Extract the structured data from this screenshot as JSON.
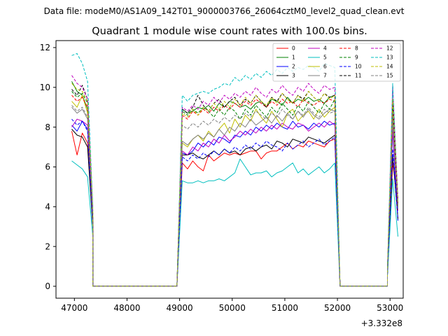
{
  "chart_data": {
    "type": "line",
    "suptitle": "Data file: modeM0/AS1A09_142T01_9000003766_26064cztM0_level2_quad_clean.evt",
    "title": "Quadrant 1 module wise count rates with 100.0s bins.",
    "xlabel": "",
    "ylabel": "",
    "x_offset_label": "+3.332e8",
    "xlim": [
      46650,
      53250
    ],
    "ylim": [
      -0.6,
      12.35
    ],
    "x_ticks": [
      47000,
      48000,
      49000,
      50000,
      51000,
      52000,
      53000
    ],
    "x_tick_labels": [
      "47000",
      "48000",
      "49000",
      "50000",
      "51000",
      "52000",
      "53000"
    ],
    "y_ticks": [
      0,
      2,
      4,
      6,
      8,
      10,
      12
    ],
    "y_tick_labels": [
      "0",
      "2",
      "4",
      "6",
      "8",
      "10",
      "12"
    ],
    "legend_position": "top-right",
    "segments": [
      {
        "start": 46950,
        "n": 5,
        "drop_index": 4
      },
      {
        "start": 49050,
        "n": 30,
        "drop_index": 0
      },
      {
        "start": 52950,
        "n": 3,
        "drop_index": 0
      }
    ],
    "zero_runs": [
      [
        47350,
        48950
      ],
      [
        52050,
        52950
      ]
    ],
    "series": [
      {
        "name": "0",
        "color": "#ff0000",
        "dash": "solid",
        "seg1": [
          7.8,
          6.6,
          7.7,
          7.2,
          3.0
        ],
        "seg2": [
          6.2,
          5.9,
          6.3,
          6.0,
          5.8,
          6.6,
          6.3,
          6.5,
          6.7,
          6.6,
          6.7,
          6.6,
          6.7,
          6.8,
          6.8,
          6.4,
          6.7,
          6.8,
          6.8,
          7.0,
          7.2,
          6.9,
          7.1,
          7.0,
          7.3,
          7.2,
          7.1,
          7.0,
          7.3,
          7.4
        ],
        "seg3": [
          0.6,
          6.2,
          4.2
        ]
      },
      {
        "name": "1",
        "color": "#008000",
        "dash": "solid",
        "seg1": [
          10.3,
          9.8,
          9.6,
          8.9,
          3.5
        ],
        "seg2": [
          8.9,
          8.7,
          8.8,
          9.0,
          8.9,
          9.1,
          8.8,
          9.2,
          9.0,
          9.3,
          9.2,
          9.0,
          9.1,
          8.9,
          9.2,
          9.3,
          9.0,
          9.4,
          9.3,
          9.1,
          9.5,
          9.2,
          9.4,
          9.3,
          9.5,
          9.3,
          9.4,
          9.2,
          9.5,
          9.6
        ],
        "seg3": [
          0.8,
          9.2,
          4.0
        ]
      },
      {
        "name": "2",
        "color": "#0000ff",
        "dash": "solid",
        "seg1": [
          8.1,
          7.8,
          8.3,
          7.9,
          3.2
        ],
        "seg2": [
          6.7,
          6.6,
          6.8,
          7.2,
          7.0,
          7.3,
          7.1,
          7.5,
          7.4,
          7.2,
          7.6,
          7.5,
          7.8,
          7.6,
          8.0,
          7.8,
          8.1,
          7.9,
          8.2,
          8.0,
          7.9,
          8.3,
          8.0,
          8.1,
          7.9,
          8.2,
          8.0,
          8.3,
          8.1,
          8.2
        ],
        "seg3": [
          0.6,
          7.8,
          3.3
        ]
      },
      {
        "name": "3",
        "color": "#000000",
        "dash": "solid",
        "seg1": [
          7.9,
          7.6,
          7.5,
          7.0,
          3.0
        ],
        "seg2": [
          6.6,
          6.6,
          6.7,
          6.5,
          6.4,
          6.6,
          6.8,
          6.6,
          6.9,
          6.7,
          6.8,
          6.6,
          6.9,
          7.0,
          6.8,
          7.0,
          7.1,
          6.9,
          7.3,
          7.2,
          7.0,
          7.4,
          7.3,
          7.2,
          7.5,
          7.4,
          7.3,
          7.2,
          7.4,
          7.6
        ],
        "seg3": [
          0.6,
          6.6,
          3.4
        ]
      },
      {
        "name": "4",
        "color": "#bf00bf",
        "dash": "solid",
        "seg1": [
          8.0,
          8.4,
          8.3,
          8.1,
          3.3
        ],
        "seg2": [
          6.8,
          6.6,
          7.0,
          6.8,
          7.2,
          7.0,
          7.4,
          7.2,
          7.6,
          7.3,
          7.5,
          7.8,
          7.6,
          7.9,
          7.7,
          8.0,
          7.8,
          8.1,
          7.9,
          8.2,
          8.0,
          7.9,
          8.2,
          8.1,
          7.8,
          8.0,
          8.2,
          8.0,
          8.3,
          8.1
        ],
        "seg3": [
          0.7,
          7.9,
          3.8
        ]
      },
      {
        "name": "5",
        "color": "#00bfbf",
        "dash": "solid",
        "seg1": [
          6.3,
          6.1,
          5.9,
          5.5,
          2.5
        ],
        "seg2": [
          5.3,
          5.2,
          5.2,
          5.3,
          5.2,
          5.3,
          5.3,
          5.4,
          5.3,
          5.5,
          5.7,
          6.4,
          6.0,
          5.6,
          5.7,
          5.7,
          5.8,
          5.5,
          5.7,
          5.8,
          6.0,
          6.2,
          5.7,
          5.9,
          5.6,
          5.8,
          6.0,
          5.7,
          5.9,
          6.2
        ],
        "seg3": [
          0.5,
          5.4,
          2.5
        ]
      },
      {
        "name": "6",
        "color": "#bfbf00",
        "dash": "solid",
        "seg1": [
          9.3,
          9.0,
          9.6,
          8.7,
          3.4
        ],
        "seg2": [
          7.2,
          7.0,
          7.4,
          7.6,
          7.3,
          7.8,
          7.5,
          7.9,
          8.2,
          7.7,
          8.4,
          8.0,
          8.6,
          8.3,
          8.9,
          8.5,
          8.2,
          8.8,
          8.4,
          8.0,
          8.7,
          8.9,
          8.3,
          8.6,
          8.8,
          8.4,
          8.9,
          8.5,
          8.8,
          9.0
        ],
        "seg3": [
          0.7,
          8.6,
          4.1
        ]
      },
      {
        "name": "7",
        "color": "#808080",
        "dash": "solid",
        "seg1": [
          9.0,
          8.7,
          8.9,
          8.4,
          3.4
        ],
        "seg2": [
          7.3,
          7.1,
          7.4,
          7.6,
          7.4,
          7.7,
          7.5,
          7.9,
          7.6,
          8.0,
          7.8,
          8.2,
          8.0,
          8.4,
          8.1,
          8.3,
          8.5,
          8.2,
          8.6,
          8.3,
          8.7,
          8.4,
          8.8,
          8.5,
          8.9,
          8.6,
          8.4,
          8.7,
          8.9,
          8.8
        ],
        "seg3": [
          0.7,
          8.4,
          3.9
        ]
      },
      {
        "name": "8",
        "color": "#ff0000",
        "dash": "dashed",
        "seg1": [
          9.6,
          9.3,
          9.5,
          9.0,
          3.6
        ],
        "seg2": [
          8.6,
          8.4,
          8.8,
          8.6,
          8.9,
          8.7,
          9.0,
          8.8,
          9.1,
          8.9,
          9.2,
          9.0,
          9.3,
          9.1,
          9.4,
          9.2,
          9.0,
          9.3,
          9.1,
          9.4,
          9.2,
          9.3,
          9.0,
          9.4,
          9.2,
          9.1,
          9.3,
          9.2,
          9.4,
          9.3
        ],
        "seg3": [
          0.8,
          9.0,
          4.1
        ]
      },
      {
        "name": "9",
        "color": "#008000",
        "dash": "dashed",
        "seg1": [
          9.8,
          9.5,
          9.7,
          9.2,
          3.7
        ],
        "seg2": [
          8.8,
          8.6,
          8.9,
          8.7,
          9.0,
          8.8,
          8.5,
          8.9,
          8.6,
          9.0,
          8.8,
          8.4,
          8.9,
          8.6,
          9.1,
          8.8,
          8.5,
          9.0,
          8.7,
          9.2,
          8.9,
          8.6,
          9.1,
          8.8,
          9.3,
          9.0,
          8.7,
          9.2,
          8.9,
          9.4
        ],
        "seg3": [
          0.8,
          9.2,
          4.2
        ]
      },
      {
        "name": "10",
        "color": "#0000ff",
        "dash": "dashed",
        "seg1": [
          8.4,
          8.1,
          8.3,
          7.8,
          3.1
        ],
        "seg2": [
          6.5,
          6.3,
          6.6,
          6.4,
          6.7,
          6.5,
          6.8,
          6.6,
          6.9,
          6.7,
          7.0,
          6.8,
          7.1,
          6.9,
          7.2,
          7.0,
          7.3,
          7.1,
          7.0,
          6.8,
          7.2,
          6.9,
          7.1,
          7.3,
          7.0,
          7.2,
          7.4,
          7.1,
          7.3,
          7.5
        ],
        "seg3": [
          0.6,
          6.9,
          3.3
        ]
      },
      {
        "name": "11",
        "color": "#000000",
        "dash": "dashed",
        "seg1": [
          9.9,
          9.6,
          10.1,
          9.4,
          3.8
        ],
        "seg2": [
          8.9,
          8.7,
          9.0,
          9.6,
          9.1,
          8.8,
          9.2,
          9.4,
          9.0,
          9.3,
          9.5,
          9.1,
          9.4,
          9.2,
          9.6,
          9.3,
          9.0,
          9.5,
          9.3,
          9.7,
          9.4,
          9.2,
          9.6,
          9.4,
          9.8,
          9.5,
          9.3,
          9.7,
          9.5,
          9.6
        ],
        "seg3": [
          0.8,
          9.3,
          4.3
        ]
      },
      {
        "name": "12",
        "color": "#bf00bf",
        "dash": "dashed",
        "seg1": [
          10.6,
          10.2,
          10.0,
          9.4,
          3.8
        ],
        "seg2": [
          9.0,
          8.8,
          9.1,
          8.9,
          9.3,
          9.1,
          9.5,
          9.2,
          9.6,
          9.4,
          9.7,
          9.5,
          9.8,
          9.6,
          10.0,
          9.7,
          9.5,
          9.9,
          9.7,
          10.1,
          9.8,
          9.6,
          10.0,
          9.8,
          10.2,
          9.9,
          9.7,
          10.1,
          9.9,
          10.0
        ],
        "seg3": [
          0.9,
          10.1,
          4.4
        ]
      },
      {
        "name": "13",
        "color": "#00bfbf",
        "dash": "dashed",
        "seg1": [
          11.6,
          11.7,
          11.2,
          10.3,
          4.0
        ],
        "seg2": [
          9.6,
          9.3,
          9.6,
          9.7,
          9.8,
          9.7,
          9.9,
          10.0,
          10.2,
          10.1,
          10.5,
          10.3,
          10.6,
          10.4,
          10.7,
          10.5,
          10.8,
          10.6,
          10.9,
          10.7,
          11.0,
          10.8,
          11.0,
          10.9,
          11.1,
          11.0,
          10.8,
          11.2,
          11.1,
          11.0
        ],
        "seg3": [
          0.9,
          10.2,
          4.2
        ]
      },
      {
        "name": "14",
        "color": "#bfbf00",
        "dash": "dashed",
        "seg1": [
          10.2,
          9.9,
          9.8,
          9.3,
          3.7
        ],
        "seg2": [
          8.7,
          8.5,
          8.9,
          8.6,
          9.0,
          8.8,
          9.2,
          8.9,
          9.3,
          9.0,
          9.4,
          9.1,
          9.5,
          9.2,
          9.6,
          9.3,
          9.1,
          9.5,
          9.2,
          9.7,
          9.4,
          9.2,
          9.6,
          9.3,
          9.8,
          9.5,
          9.3,
          9.7,
          9.4,
          9.6
        ],
        "seg3": [
          0.8,
          9.4,
          4.3
        ]
      },
      {
        "name": "15",
        "color": "#808080",
        "dash": "dashed",
        "seg1": [
          9.1,
          8.8,
          9.0,
          8.5,
          3.5
        ],
        "seg2": [
          8.1,
          7.9,
          8.2,
          8.0,
          8.3,
          8.1,
          8.4,
          8.2,
          8.5,
          8.3,
          8.6,
          8.4,
          8.7,
          8.5,
          8.8,
          8.6,
          8.4,
          8.7,
          8.5,
          8.9,
          8.6,
          8.4,
          8.8,
          8.6,
          9.0,
          8.7,
          8.5,
          8.9,
          8.7,
          8.8
        ],
        "seg3": [
          0.8,
          8.7,
          4.0
        ]
      }
    ]
  }
}
